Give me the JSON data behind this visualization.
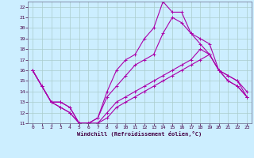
{
  "xlabel": "Windchill (Refroidissement éolien,°C)",
  "bg_color": "#cceeff",
  "grid_color": "#aacccc",
  "line_color": "#aa00aa",
  "axis_color": "#666688",
  "xlim": [
    -0.5,
    23.5
  ],
  "ylim": [
    11,
    22.5
  ],
  "xticks": [
    0,
    1,
    2,
    3,
    4,
    5,
    6,
    7,
    8,
    9,
    10,
    11,
    12,
    13,
    14,
    15,
    16,
    17,
    18,
    19,
    20,
    21,
    22,
    23
  ],
  "yticks": [
    11,
    12,
    13,
    14,
    15,
    16,
    17,
    18,
    19,
    20,
    21,
    22
  ],
  "lines": [
    {
      "x": [
        0,
        1,
        2,
        3,
        4,
        5,
        6,
        7,
        8,
        9,
        10,
        11,
        12,
        13,
        14,
        15,
        16,
        17,
        18,
        19,
        20,
        21,
        22,
        23
      ],
      "y": [
        16.0,
        14.5,
        13.0,
        13.0,
        12.5,
        11.0,
        11.0,
        11.0,
        11.5,
        12.5,
        13.0,
        13.5,
        14.0,
        14.5,
        15.0,
        15.5,
        16.0,
        16.5,
        17.0,
        17.5,
        16.0,
        15.5,
        15.0,
        14.0
      ],
      "marker": true
    },
    {
      "x": [
        0,
        1,
        2,
        3,
        4,
        5,
        6,
        7,
        8,
        9,
        10,
        11,
        12,
        13,
        14,
        15,
        16,
        17,
        18,
        19,
        20,
        21,
        22,
        23
      ],
      "y": [
        16.0,
        14.5,
        13.0,
        13.0,
        12.5,
        11.0,
        11.0,
        11.0,
        12.0,
        13.0,
        13.5,
        14.0,
        14.5,
        15.0,
        15.5,
        16.0,
        16.5,
        17.0,
        18.0,
        17.5,
        16.0,
        15.5,
        15.0,
        13.5
      ],
      "marker": true
    },
    {
      "x": [
        0,
        1,
        2,
        3,
        4,
        5,
        6,
        7,
        8,
        9,
        10,
        11,
        12,
        13,
        14,
        15,
        16,
        17,
        18,
        19,
        20,
        21,
        22,
        23
      ],
      "y": [
        16.0,
        14.5,
        13.0,
        12.5,
        12.0,
        11.0,
        11.0,
        11.5,
        13.5,
        14.5,
        15.5,
        16.5,
        17.0,
        17.5,
        19.5,
        21.0,
        20.5,
        19.5,
        18.5,
        17.5,
        16.0,
        15.0,
        14.5,
        13.5
      ],
      "marker": true
    },
    {
      "x": [
        0,
        1,
        2,
        3,
        4,
        5,
        6,
        7,
        8,
        9,
        10,
        11,
        12,
        13,
        14,
        15,
        16,
        17,
        18,
        19,
        20,
        21,
        22,
        23
      ],
      "y": [
        16.0,
        14.5,
        13.0,
        12.5,
        12.0,
        11.0,
        11.0,
        11.5,
        14.0,
        16.0,
        17.0,
        17.5,
        19.0,
        20.0,
        22.5,
        21.5,
        21.5,
        19.5,
        19.0,
        18.5,
        16.0,
        15.0,
        14.5,
        13.5
      ],
      "marker": true
    }
  ]
}
